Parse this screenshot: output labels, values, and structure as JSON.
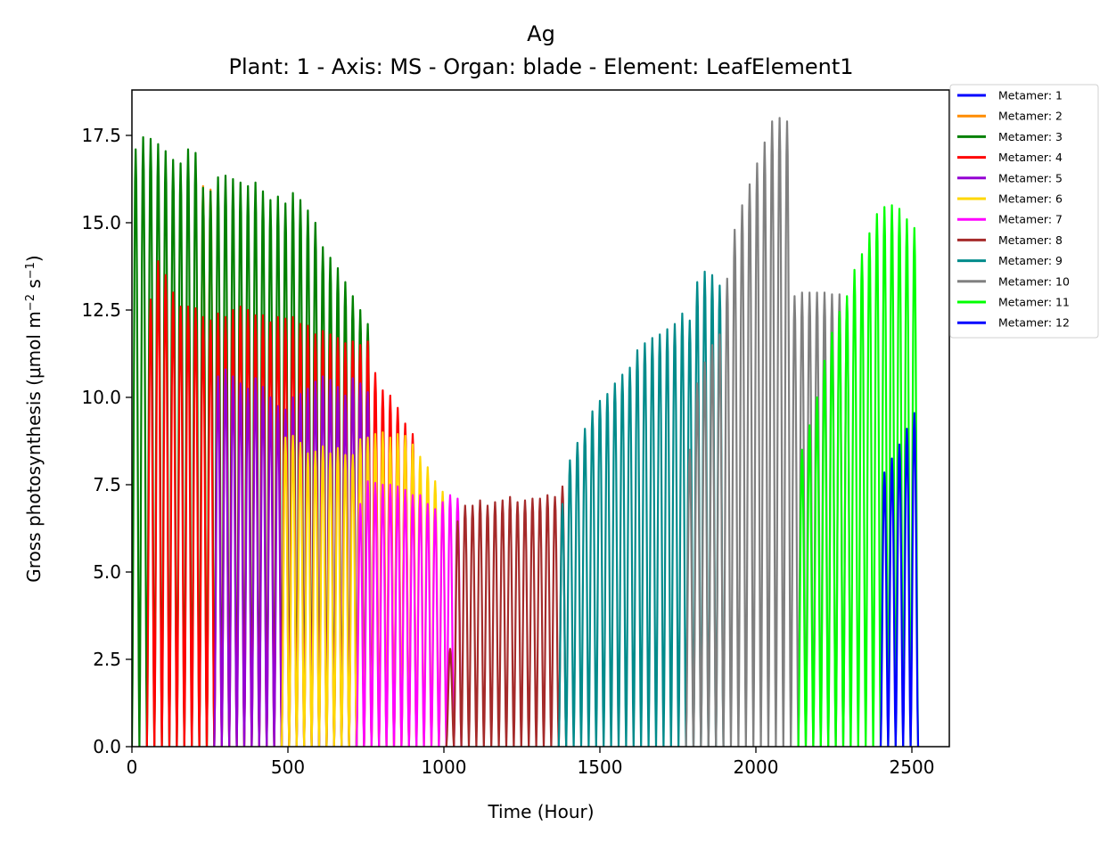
{
  "chart_data": {
    "type": "line",
    "title": "Ag",
    "subtitle": "Plant: 1 - Axis: MS - Organ: blade - Element: LeafElement1",
    "xlabel": "Time (Hour)",
    "ylabel_main": "Gross photosynthesis (μmol m",
    "ylabel_exp1": "−2",
    "ylabel_mid": " s",
    "ylabel_exp2": "−1",
    "ylabel_end": ")",
    "xlim": [
      0,
      2620
    ],
    "ylim": [
      0,
      18.8
    ],
    "xticks": [
      0,
      500,
      1000,
      1500,
      2000,
      2500
    ],
    "xtick_labels": [
      "0",
      "500",
      "1000",
      "1500",
      "2000",
      "2500"
    ],
    "yticks": [
      0,
      2.5,
      5,
      7.5,
      10,
      12.5,
      15,
      17.5
    ],
    "ytick_labels": [
      "0.0",
      "2.5",
      "5.0",
      "7.5",
      "10.0",
      "12.5",
      "15.0",
      "17.5"
    ],
    "legend_position": "outside-top-right",
    "period_hours": 24,
    "series": [
      {
        "name": "Metamer: 1",
        "color": "#0000ff",
        "x": [],
        "peaks": []
      },
      {
        "name": "Metamer: 2",
        "color": "#ff8c00",
        "x": [
          216,
          240
        ],
        "peaks": [
          16.05,
          15.95
        ]
      },
      {
        "name": "Metamer: 3",
        "color": "#008000",
        "x": [
          0,
          24,
          48,
          72,
          96,
          120,
          144,
          168,
          192,
          216,
          240,
          264,
          288,
          312,
          336,
          360,
          384,
          408,
          432,
          456,
          480,
          504,
          528,
          552,
          576,
          600,
          624,
          648,
          672,
          696,
          720,
          744
        ],
        "peaks": [
          17.1,
          17.45,
          17.4,
          17.25,
          17.05,
          16.8,
          16.7,
          17.1,
          17.0,
          16.0,
          15.9,
          16.3,
          16.35,
          16.25,
          16.15,
          16.05,
          16.15,
          15.9,
          15.65,
          15.75,
          15.55,
          15.85,
          15.65,
          15.35,
          15.0,
          14.3,
          14.0,
          13.7,
          13.3,
          12.9,
          12.5,
          12.1
        ]
      },
      {
        "name": "Metamer: 4",
        "color": "#ff0000",
        "x": [
          48,
          72,
          96,
          120,
          144,
          168,
          192,
          216,
          240,
          264,
          288,
          312,
          336,
          360,
          384,
          408,
          432,
          456,
          480,
          504,
          528,
          552,
          576,
          600,
          624,
          648,
          672,
          696,
          720,
          744,
          768,
          792,
          816,
          840,
          864,
          888
        ],
        "peaks": [
          12.8,
          13.9,
          13.5,
          13.0,
          12.6,
          12.6,
          12.55,
          12.3,
          12.2,
          12.4,
          12.3,
          12.5,
          12.6,
          12.5,
          12.35,
          12.35,
          12.15,
          12.3,
          12.25,
          12.3,
          12.1,
          12.05,
          11.8,
          11.9,
          11.8,
          11.7,
          11.55,
          11.6,
          11.5,
          11.6,
          10.7,
          10.2,
          10.05,
          9.7,
          9.25,
          8.95
        ]
      },
      {
        "name": "Metamer: 5",
        "color": "#9400d3",
        "x": [
          264,
          288,
          312,
          336,
          360,
          384,
          408,
          432,
          456,
          480,
          504,
          528,
          552,
          576,
          600,
          624,
          648,
          672,
          696,
          720,
          744
        ],
        "peaks": [
          10.6,
          10.8,
          10.6,
          10.4,
          10.25,
          10.55,
          10.3,
          10.0,
          9.75,
          9.65,
          10.0,
          10.1,
          10.25,
          10.45,
          10.6,
          10.5,
          10.3,
          10.05,
          10.55,
          10.4,
          10.15
        ]
      },
      {
        "name": "Metamer: 6",
        "color": "#ffd700",
        "x": [
          480,
          504,
          528,
          552,
          576,
          600,
          624,
          648,
          672,
          696,
          720,
          744,
          768,
          792,
          816,
          840,
          864,
          888,
          912,
          936,
          960,
          984
        ],
        "peaks": [
          8.85,
          8.9,
          8.7,
          8.4,
          8.45,
          8.6,
          8.4,
          8.55,
          8.35,
          8.35,
          8.8,
          8.85,
          8.95,
          9.0,
          8.85,
          8.95,
          8.9,
          8.65,
          8.3,
          8.0,
          7.6,
          7.3
        ]
      },
      {
        "name": "Metamer: 7",
        "color": "#ff00ff",
        "x": [
          720,
          744,
          768,
          792,
          816,
          840,
          864,
          888,
          912,
          936,
          960,
          984,
          1008,
          1032
        ],
        "peaks": [
          6.95,
          7.6,
          7.55,
          7.5,
          7.5,
          7.45,
          7.35,
          7.2,
          7.2,
          6.95,
          6.8,
          7.0,
          7.2,
          7.1
        ]
      },
      {
        "name": "Metamer: 8",
        "color": "#a52a2a",
        "x": [
          1008,
          1032,
          1056,
          1080,
          1104,
          1128,
          1152,
          1176,
          1200,
          1224,
          1248,
          1272,
          1296,
          1320,
          1344,
          1368
        ],
        "peaks": [
          2.8,
          6.45,
          6.9,
          6.9,
          7.05,
          6.9,
          7.0,
          7.05,
          7.15,
          7.0,
          7.05,
          7.1,
          7.1,
          7.2,
          7.15,
          7.45
        ]
      },
      {
        "name": "Metamer: 9",
        "color": "#008b8b",
        "x": [
          1368,
          1392,
          1416,
          1440,
          1464,
          1488,
          1512,
          1536,
          1560,
          1584,
          1608,
          1632,
          1656,
          1680,
          1704,
          1728,
          1752,
          1776,
          1800,
          1824,
          1848,
          1872
        ],
        "peaks": [
          6.95,
          8.2,
          8.7,
          9.1,
          9.6,
          9.9,
          10.1,
          10.4,
          10.65,
          10.85,
          11.35,
          11.55,
          11.7,
          11.8,
          11.95,
          12.1,
          12.4,
          12.2,
          13.3,
          13.6,
          13.5,
          13.2
        ]
      },
      {
        "name": "Metamer: 10",
        "color": "#808080",
        "x": [
          1776,
          1800,
          1824,
          1848,
          1872,
          1896,
          1920,
          1944,
          1968,
          1992,
          2016,
          2040,
          2064,
          2088,
          2112,
          2136,
          2160,
          2184,
          2208,
          2232,
          2256,
          2280
        ],
        "peaks": [
          8.5,
          10.4,
          11.0,
          11.5,
          11.8,
          13.4,
          14.8,
          15.5,
          16.1,
          16.7,
          17.3,
          17.9,
          18.0,
          17.9,
          12.9,
          13.0,
          13.0,
          13.0,
          13.0,
          12.95,
          12.95,
          12.85
        ]
      },
      {
        "name": "Metamer: 11",
        "color": "#00ff00",
        "x": [
          2136,
          2160,
          2184,
          2208,
          2232,
          2256,
          2280,
          2304,
          2328,
          2352,
          2376,
          2400,
          2424,
          2448,
          2472,
          2496
        ],
        "peaks": [
          8.5,
          9.2,
          10.0,
          11.05,
          11.85,
          12.45,
          12.9,
          13.65,
          14.1,
          14.7,
          15.25,
          15.45,
          15.5,
          15.4,
          15.1,
          14.85
        ]
      },
      {
        "name": "Metamer: 12",
        "color": "#0000ff",
        "x": [
          2400,
          2424,
          2448,
          2472,
          2496
        ],
        "peaks": [
          7.85,
          8.25,
          8.65,
          9.1,
          9.55
        ]
      }
    ]
  }
}
